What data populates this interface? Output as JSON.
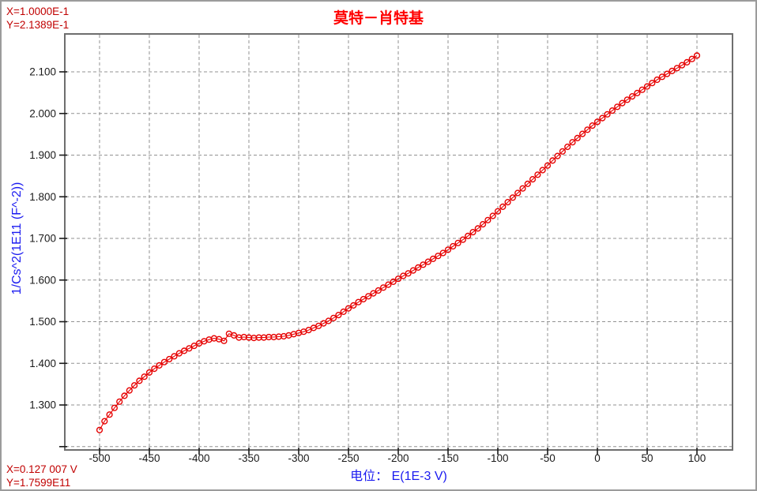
{
  "window": {
    "background": "#ffffff",
    "border_color": "#9b9b9b"
  },
  "title": {
    "text": "莫特－肖特基",
    "color": "#ff0000"
  },
  "readouts": {
    "color": "#c00000",
    "top": {
      "x": "X=1.0000E-1",
      "y": "Y=2.1389E-1"
    },
    "bottom": {
      "x": "X=0.127 007 V",
      "y": "Y=1.7599E11"
    }
  },
  "chart_data": {
    "type": "scatter",
    "title": "莫特－肖特基",
    "xlabel": "电位：  E(1E-3 V)",
    "ylabel": "1/Cs^2(1E11 (F^-2))",
    "xlabel_color": "#1a1af0",
    "ylabel_color": "#1a1af0",
    "tick_label_color": "#1a1a1a",
    "plot_border_color": "#6e6e6e",
    "grid": "dashed",
    "grid_color": "#929292",
    "legend_position": "none",
    "xlim": [
      -534.9,
      135.7
    ],
    "ylim": [
      1.192,
      2.191
    ],
    "x_ticks": [
      -500,
      -450,
      -400,
      -350,
      -300,
      -250,
      -200,
      -150,
      -100,
      -50,
      0,
      50,
      100
    ],
    "x_tick_labels": [
      "-500",
      "-450",
      "-400",
      "-350",
      "-300",
      "-250",
      "-200",
      "-150",
      "-100",
      "-50",
      "0",
      "50",
      "100"
    ],
    "y_ticks": [
      1.2,
      1.3,
      1.4,
      1.5,
      1.6,
      1.7,
      1.8,
      1.9,
      2.0,
      2.1
    ],
    "y_tick_labels": [
      "",
      "1.300",
      "1.400",
      "1.500",
      "1.600",
      "1.700",
      "1.800",
      "1.900",
      "2.000",
      "2.100"
    ],
    "series": [
      {
        "name": "Mott-Schottky",
        "marker": "open-circle",
        "marker_color": "#e60000",
        "line_color": "#e60000",
        "x_unit": "1E-3 V",
        "y_unit": "1E11 F^-2",
        "points": [
          [
            -500,
            1.24
          ],
          [
            -495,
            1.261
          ],
          [
            -490,
            1.277
          ],
          [
            -485,
            1.293
          ],
          [
            -480,
            1.308
          ],
          [
            -475,
            1.322
          ],
          [
            -470,
            1.335
          ],
          [
            -465,
            1.347
          ],
          [
            -460,
            1.358
          ],
          [
            -455,
            1.368
          ],
          [
            -450,
            1.378
          ],
          [
            -445,
            1.387
          ],
          [
            -440,
            1.395
          ],
          [
            -435,
            1.403
          ],
          [
            -430,
            1.41
          ],
          [
            -425,
            1.417
          ],
          [
            -420,
            1.424
          ],
          [
            -415,
            1.43
          ],
          [
            -410,
            1.436
          ],
          [
            -405,
            1.442
          ],
          [
            -400,
            1.448
          ],
          [
            -395,
            1.453
          ],
          [
            -390,
            1.457
          ],
          [
            -385,
            1.46
          ],
          [
            -380,
            1.458
          ],
          [
            -375,
            1.454
          ],
          [
            -370,
            1.471
          ],
          [
            -365,
            1.467
          ],
          [
            -360,
            1.462
          ],
          [
            -355,
            1.463
          ],
          [
            -350,
            1.462
          ],
          [
            -345,
            1.461
          ],
          [
            -340,
            1.462
          ],
          [
            -335,
            1.462
          ],
          [
            -330,
            1.463
          ],
          [
            -325,
            1.463
          ],
          [
            -320,
            1.464
          ],
          [
            -315,
            1.465
          ],
          [
            -310,
            1.467
          ],
          [
            -305,
            1.47
          ],
          [
            -300,
            1.473
          ],
          [
            -295,
            1.476
          ],
          [
            -290,
            1.48
          ],
          [
            -285,
            1.485
          ],
          [
            -280,
            1.49
          ],
          [
            -275,
            1.496
          ],
          [
            -270,
            1.502
          ],
          [
            -265,
            1.509
          ],
          [
            -260,
            1.516
          ],
          [
            -255,
            1.524
          ],
          [
            -250,
            1.532
          ],
          [
            -245,
            1.539
          ],
          [
            -240,
            1.547
          ],
          [
            -235,
            1.554
          ],
          [
            -230,
            1.561
          ],
          [
            -225,
            1.568
          ],
          [
            -220,
            1.575
          ],
          [
            -215,
            1.582
          ],
          [
            -210,
            1.589
          ],
          [
            -205,
            1.596
          ],
          [
            -200,
            1.603
          ],
          [
            -195,
            1.61
          ],
          [
            -190,
            1.616
          ],
          [
            -185,
            1.623
          ],
          [
            -180,
            1.63
          ],
          [
            -175,
            1.637
          ],
          [
            -170,
            1.644
          ],
          [
            -165,
            1.651
          ],
          [
            -160,
            1.658
          ],
          [
            -155,
            1.665
          ],
          [
            -150,
            1.673
          ],
          [
            -145,
            1.681
          ],
          [
            -140,
            1.689
          ],
          [
            -135,
            1.697
          ],
          [
            -130,
            1.706
          ],
          [
            -125,
            1.715
          ],
          [
            -120,
            1.724
          ],
          [
            -115,
            1.734
          ],
          [
            -110,
            1.744
          ],
          [
            -105,
            1.754
          ],
          [
            -100,
            1.765
          ],
          [
            -95,
            1.776
          ],
          [
            -90,
            1.787
          ],
          [
            -85,
            1.798
          ],
          [
            -80,
            1.809
          ],
          [
            -75,
            1.82
          ],
          [
            -70,
            1.831
          ],
          [
            -65,
            1.842
          ],
          [
            -60,
            1.853
          ],
          [
            -55,
            1.864
          ],
          [
            -50,
            1.875
          ],
          [
            -45,
            1.887
          ],
          [
            -40,
            1.898
          ],
          [
            -35,
            1.909
          ],
          [
            -30,
            1.92
          ],
          [
            -25,
            1.931
          ],
          [
            -20,
            1.941
          ],
          [
            -15,
            1.951
          ],
          [
            -10,
            1.961
          ],
          [
            -5,
            1.971
          ],
          [
            0,
            1.98
          ],
          [
            5,
            1.989
          ],
          [
            10,
            1.998
          ],
          [
            15,
            2.007
          ],
          [
            20,
            2.016
          ],
          [
            25,
            2.025
          ],
          [
            30,
            2.033
          ],
          [
            35,
            2.041
          ],
          [
            40,
            2.049
          ],
          [
            45,
            2.057
          ],
          [
            50,
            2.065
          ],
          [
            55,
            2.073
          ],
          [
            60,
            2.081
          ],
          [
            65,
            2.088
          ],
          [
            70,
            2.095
          ],
          [
            75,
            2.102
          ],
          [
            80,
            2.109
          ],
          [
            85,
            2.116
          ],
          [
            90,
            2.123
          ],
          [
            95,
            2.131
          ],
          [
            100,
            2.139
          ]
        ]
      }
    ]
  }
}
